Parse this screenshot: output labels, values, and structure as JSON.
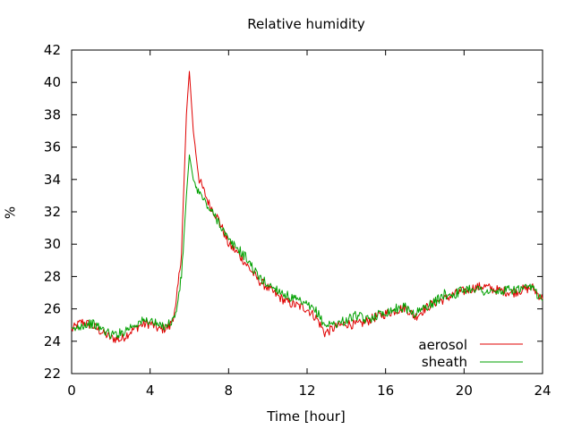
{
  "chart_data": {
    "type": "line",
    "title": "Relative humidity",
    "xlabel": "Time [hour]",
    "ylabel": "%",
    "xlim": [
      0,
      24
    ],
    "ylim": [
      22,
      42
    ],
    "xticks": [
      "0",
      "4",
      "8",
      "12",
      "16",
      "20",
      "24"
    ],
    "yticks": [
      "22",
      "24",
      "26",
      "28",
      "30",
      "32",
      "34",
      "36",
      "38",
      "40",
      "42"
    ],
    "grid": false,
    "legend_position": "bottom-right",
    "series": [
      {
        "name": "aerosol",
        "color": "#e00000",
        "x": [
          0,
          0.5,
          1,
          1.5,
          2,
          2.5,
          3,
          3.5,
          4,
          4.5,
          5,
          5.3,
          5.6,
          5.85,
          6.0,
          6.2,
          6.5,
          7,
          7.5,
          8,
          8.5,
          9,
          9.5,
          10,
          10.5,
          11,
          11.5,
          12,
          12.5,
          12.9,
          13.5,
          14,
          14.5,
          15,
          15.5,
          16,
          16.5,
          17,
          17.5,
          18,
          18.5,
          19,
          19.5,
          20,
          20.5,
          21,
          21.5,
          22,
          22.5,
          23,
          23.5,
          24
        ],
        "y": [
          24.7,
          25.2,
          25.0,
          24.6,
          24.2,
          24.1,
          24.6,
          25.0,
          25.1,
          24.7,
          24.9,
          26.0,
          29.5,
          38.0,
          40.7,
          37.0,
          34.0,
          32.5,
          31.5,
          30.0,
          29.4,
          28.6,
          27.8,
          27.3,
          26.8,
          26.4,
          26.2,
          26.0,
          25.4,
          24.5,
          24.9,
          25.1,
          25.0,
          25.2,
          25.5,
          25.7,
          25.9,
          26.1,
          25.5,
          26.0,
          26.4,
          26.6,
          26.9,
          27.1,
          27.3,
          27.4,
          27.2,
          27.1,
          27.0,
          27.2,
          27.3,
          26.6
        ]
      },
      {
        "name": "sheath",
        "color": "#00a000",
        "x": [
          0,
          0.5,
          1,
          1.5,
          2,
          2.5,
          3,
          3.5,
          4,
          4.5,
          5,
          5.3,
          5.6,
          5.85,
          6.0,
          6.2,
          6.5,
          7,
          7.5,
          8,
          8.5,
          9,
          9.5,
          10,
          10.5,
          11,
          11.5,
          12,
          12.5,
          12.9,
          13.5,
          14,
          14.5,
          15,
          15.5,
          16,
          16.5,
          17,
          17.5,
          18,
          18.5,
          19,
          19.5,
          20,
          20.5,
          21,
          21.5,
          22,
          22.5,
          23,
          23.5,
          24
        ],
        "y": [
          24.6,
          25.0,
          25.1,
          24.8,
          24.4,
          24.5,
          24.9,
          25.2,
          25.3,
          24.9,
          25.1,
          25.6,
          28.0,
          33.0,
          35.5,
          34.0,
          33.2,
          32.2,
          31.4,
          30.2,
          29.7,
          29.0,
          28.0,
          27.5,
          27.2,
          26.8,
          26.5,
          26.2,
          25.8,
          25.0,
          25.1,
          25.3,
          25.6,
          25.3,
          25.6,
          25.8,
          26.0,
          26.1,
          25.7,
          26.1,
          26.4,
          26.9,
          26.9,
          27.2,
          27.3,
          27.1,
          27.0,
          27.1,
          27.2,
          27.2,
          27.3,
          26.5
        ]
      }
    ]
  }
}
